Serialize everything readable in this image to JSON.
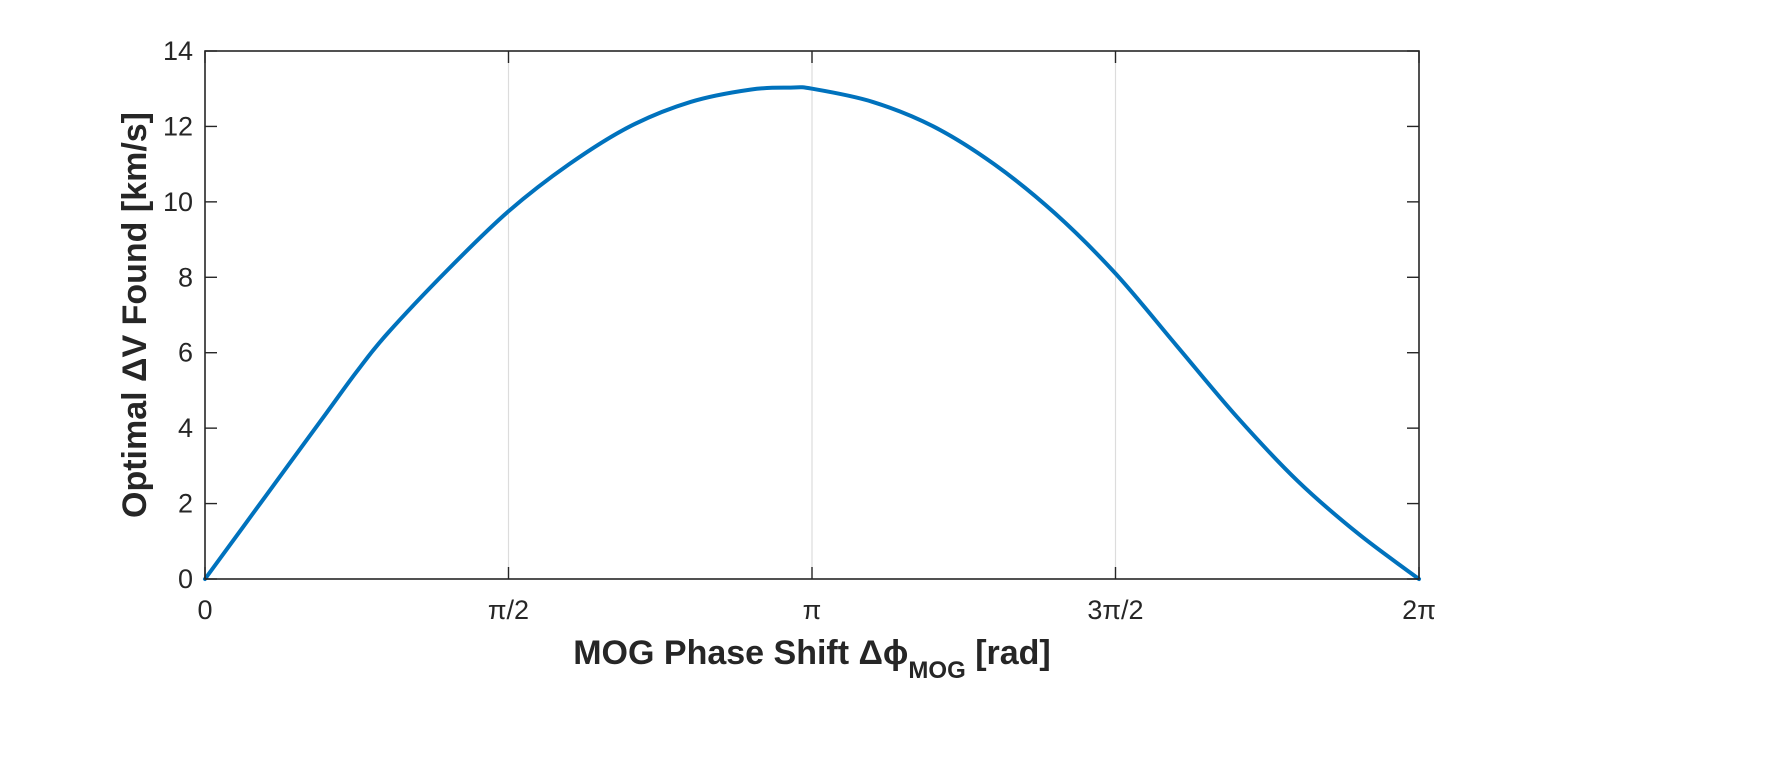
{
  "chart_data": {
    "type": "line",
    "title": "",
    "xlabel": "MOG Phase Shift Δϕ",
    "xlabel_subscript": "MOG",
    "xlabel_suffix": " [rad]",
    "ylabel": "Optimal ΔV Found [km/s]",
    "xlim": [
      0,
      6.2832
    ],
    "ylim": [
      0,
      14
    ],
    "grid": "vertical",
    "x_ticks": [
      {
        "value": 0,
        "label": "0"
      },
      {
        "value": 1.5708,
        "label": "π/2"
      },
      {
        "value": 3.1416,
        "label": "π"
      },
      {
        "value": 4.7124,
        "label": "3π/2"
      },
      {
        "value": 6.2832,
        "label": "2π"
      }
    ],
    "y_ticks": [
      {
        "value": 0,
        "label": "0"
      },
      {
        "value": 2,
        "label": "2"
      },
      {
        "value": 4,
        "label": "4"
      },
      {
        "value": 6,
        "label": "6"
      },
      {
        "value": 8,
        "label": "8"
      },
      {
        "value": 10,
        "label": "10"
      },
      {
        "value": 12,
        "label": "12"
      },
      {
        "value": 14,
        "label": "14"
      }
    ],
    "series": [
      {
        "name": "Optimal ΔV",
        "color": "#0072BD",
        "x": [
          0,
          0.3142,
          0.6283,
          0.7854,
          0.9425,
          1.2566,
          1.5708,
          1.885,
          2.1991,
          2.5133,
          2.8274,
          3.0316,
          3.1416,
          3.4558,
          3.7699,
          4.0841,
          4.3982,
          4.7124,
          5.0265,
          5.3407,
          5.6549,
          5.969,
          6.2832
        ],
        "y": [
          0,
          2.2,
          4.4,
          5.5,
          6.5,
          8.2,
          9.75,
          11.0,
          12.0,
          12.65,
          12.98,
          13.03,
          13.0,
          12.65,
          12.0,
          11.0,
          9.7,
          8.1,
          6.2,
          4.3,
          2.6,
          1.2,
          0
        ]
      }
    ]
  }
}
